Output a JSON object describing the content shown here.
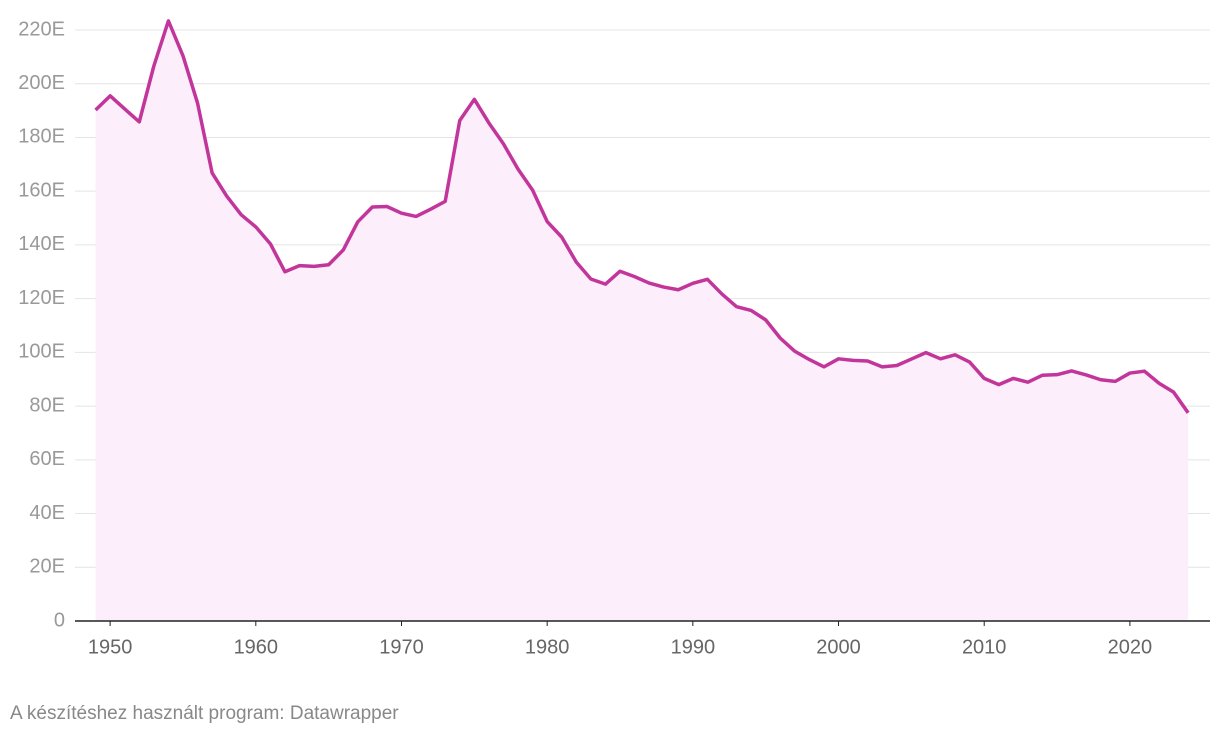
{
  "chart_data": {
    "type": "area",
    "x": [
      1949,
      1950,
      1951,
      1952,
      1953,
      1954,
      1955,
      1956,
      1957,
      1958,
      1959,
      1960,
      1961,
      1962,
      1963,
      1964,
      1965,
      1966,
      1967,
      1968,
      1969,
      1970,
      1971,
      1972,
      1973,
      1974,
      1975,
      1976,
      1977,
      1978,
      1979,
      1980,
      1981,
      1982,
      1983,
      1984,
      1985,
      1986,
      1987,
      1988,
      1989,
      1990,
      1991,
      1992,
      1993,
      1994,
      1995,
      1996,
      1997,
      1998,
      1999,
      2000,
      2001,
      2002,
      2003,
      2004,
      2005,
      2006,
      2007,
      2008,
      2009,
      2010,
      2011,
      2012,
      2013,
      2014,
      2015,
      2016,
      2017,
      2018,
      2019,
      2020,
      2021,
      2022,
      2023,
      2024
    ],
    "values": [
      190.2,
      195.5,
      190.6,
      185.8,
      206.6,
      223.4,
      210.4,
      192.8,
      166.8,
      158.2,
      151.2,
      146.7,
      140.4,
      130.0,
      132.3,
      132.0,
      132.6,
      138.1,
      148.6,
      154.1,
      154.3,
      151.8,
      150.6,
      153.3,
      156.2,
      186.3,
      194.2,
      185.4,
      177.6,
      168.2,
      160.4,
      148.7,
      142.9,
      133.6,
      127.3,
      125.4,
      130.2,
      128.2,
      125.8,
      124.3,
      123.3,
      125.7,
      127.2,
      121.7,
      117.0,
      115.6,
      112.1,
      105.3,
      100.4,
      97.3,
      94.6,
      97.6,
      97.0,
      96.8,
      94.6,
      95.1,
      97.5,
      99.9,
      97.6,
      99.1,
      96.4,
      90.3,
      88.0,
      90.3,
      88.9,
      91.5,
      91.7,
      93.1,
      91.6,
      89.8,
      89.2,
      92.3,
      93.0,
      88.5,
      85.2,
      77.5
    ],
    "color": "#c2369b",
    "fill_color": "#fdeefb",
    "xlim": [
      1948,
      2025.5
    ],
    "xticks": [
      1950,
      1960,
      1970,
      1980,
      1990,
      2000,
      2010,
      2020
    ],
    "ylim": [
      0,
      220
    ],
    "yticks": [
      0,
      {
        "value": 20,
        "label": "20E"
      },
      {
        "value": 40,
        "label": "40E"
      },
      {
        "value": 60,
        "label": "60E"
      },
      {
        "value": 80,
        "label": "80E"
      },
      {
        "value": 100,
        "label": "100E"
      },
      {
        "value": 120,
        "label": "120E"
      },
      {
        "value": 140,
        "label": "140E"
      },
      {
        "value": 160,
        "label": "160E"
      },
      {
        "value": 180,
        "label": "180E"
      },
      {
        "value": 200,
        "label": "200E"
      },
      {
        "value": 220,
        "label": "220E"
      }
    ],
    "grid": true,
    "caption": "A készítéshez használt program: Datawrapper"
  }
}
